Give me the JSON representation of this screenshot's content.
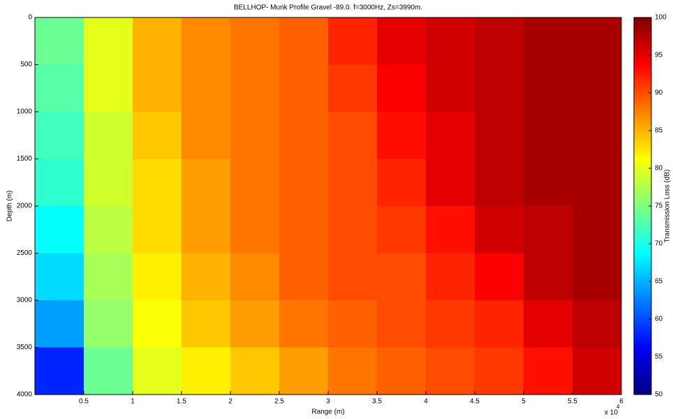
{
  "chart_data": {
    "type": "heatmap",
    "title": "BELLHOP- Munk Profile Gravel -89.0. f=3000Hz, Zs=3990m.",
    "xlabel": "Range (m)",
    "ylabel": "Depth (m)",
    "colorbar_label": "Transmission Loss (dB)",
    "x_scale_label": "x 10",
    "x_scale_exponent": "4",
    "colormap": "jet",
    "y_reversed": true,
    "x": [
      0.25,
      0.75,
      1.25,
      1.75,
      2.25,
      2.75,
      3.25,
      3.75,
      4.25,
      4.75,
      5.25,
      5.75
    ],
    "y": [
      250,
      750,
      1250,
      1750,
      2250,
      2750,
      3250,
      3750
    ],
    "z": [
      [
        74,
        80,
        85,
        87,
        88,
        89,
        92,
        95,
        96,
        97,
        98,
        98
      ],
      [
        73,
        80,
        85,
        87,
        88,
        89,
        91,
        94,
        96,
        97,
        98,
        98
      ],
      [
        72,
        79,
        84,
        87,
        88,
        89,
        90,
        93,
        95,
        97,
        98,
        98
      ],
      [
        71,
        79,
        83,
        86,
        88,
        89,
        90,
        92,
        95,
        97,
        98,
        98
      ],
      [
        69,
        78,
        83,
        86,
        88,
        89,
        90,
        91,
        93,
        96,
        97,
        98
      ],
      [
        67,
        77,
        82,
        85,
        87,
        89,
        90,
        90,
        92,
        94,
        97,
        98
      ],
      [
        64,
        76,
        81,
        84,
        86,
        88,
        89,
        90,
        91,
        92,
        95,
        97
      ],
      [
        58,
        74,
        80,
        82,
        84,
        86,
        88,
        89,
        90,
        91,
        93,
        96
      ]
    ],
    "xlim": [
      0,
      6
    ],
    "xticks": [
      0.5,
      1,
      1.5,
      2,
      2.5,
      3,
      3.5,
      4,
      4.5,
      5,
      5.5,
      6
    ],
    "ylim": [
      0,
      4000
    ],
    "yticks": [
      0,
      500,
      1000,
      1500,
      2000,
      2500,
      3000,
      3500,
      4000
    ],
    "clim": [
      50,
      100
    ],
    "cticks": [
      50,
      55,
      60,
      65,
      70,
      75,
      80,
      85,
      90,
      95,
      100
    ]
  }
}
